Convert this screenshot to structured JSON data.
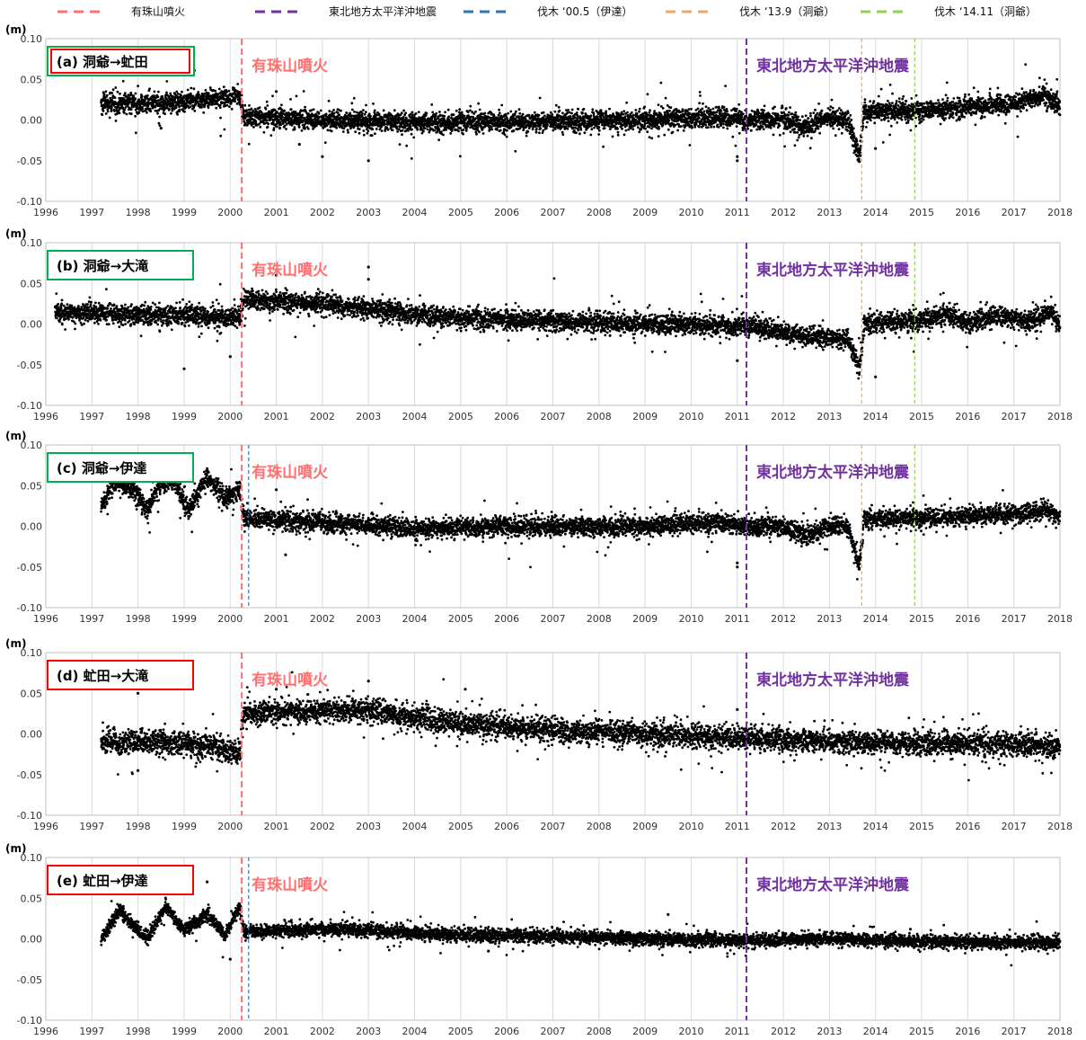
{
  "legend": [
    {
      "label": "有珠山噴火",
      "color": "#ff7070"
    },
    {
      "label": "東北地方太平洋沖地震",
      "color": "#7030a0"
    },
    {
      "label": "伐木 ‘00.5（伊達）",
      "color": "#2e75b6"
    },
    {
      "label": "伐木 ‘13.9（洞爺）",
      "color": "#f4a460"
    },
    {
      "label": "伐木 ‘14.11（洞爺）",
      "color": "#92d050"
    }
  ],
  "chart_data": [
    {
      "type": "scatter",
      "title": "(a) 洞爺→虻田",
      "title_box_color": "#00b050",
      "title_box_color_inner": "#ff0000",
      "y_unit": "(m)",
      "xlim": [
        1996,
        2018
      ],
      "ylim": [
        -0.1,
        0.1
      ],
      "x_ticks": [
        "1996",
        "1997",
        "1998",
        "1999",
        "2000",
        "2001",
        "2002",
        "2003",
        "2004",
        "2005",
        "2006",
        "2007",
        "2008",
        "2009",
        "2010",
        "2011",
        "2012",
        "2013",
        "2014",
        "2015",
        "2016",
        "2017",
        "2018"
      ],
      "y_ticks": [
        "0.10",
        "0.05",
        "0.00",
        "-0.05",
        "-0.10"
      ],
      "annotations": [
        {
          "text": "有珠山噴火",
          "x": 2000.25,
          "color": "#ff7070"
        },
        {
          "text": "東北地方太平洋沖地震",
          "x": 2011.2,
          "color": "#7030a0"
        }
      ],
      "events": [
        {
          "x": 2000.25,
          "color": "#ff7070",
          "style": "heavy"
        },
        {
          "x": 2011.2,
          "color": "#7030a0",
          "style": "heavy"
        },
        {
          "x": 2013.7,
          "color": "#f4a460",
          "style": "light"
        },
        {
          "x": 2014.85,
          "color": "#92d050",
          "style": "light"
        }
      ],
      "series_profile": [
        [
          1997.2,
          0.02
        ],
        [
          1998.0,
          0.02
        ],
        [
          1999.0,
          0.022
        ],
        [
          2000.2,
          0.03
        ],
        [
          2000.3,
          0.005
        ],
        [
          2002.0,
          0.0
        ],
        [
          2004.0,
          -0.003
        ],
        [
          2007.0,
          -0.002
        ],
        [
          2009.0,
          0.0
        ],
        [
          2010.5,
          0.004
        ],
        [
          2011.2,
          0.0
        ],
        [
          2012.0,
          0.002
        ],
        [
          2012.5,
          -0.01
        ],
        [
          2013.0,
          0.002
        ],
        [
          2013.4,
          0.0
        ],
        [
          2013.65,
          -0.045
        ],
        [
          2013.75,
          0.01
        ],
        [
          2015.0,
          0.012
        ],
        [
          2016.0,
          0.015
        ],
        [
          2017.0,
          0.02
        ],
        [
          2017.7,
          0.03
        ],
        [
          2018.0,
          0.015
        ]
      ],
      "noise": 0.006,
      "outliers": [
        [
          2001.5,
          -0.03
        ],
        [
          2002.0,
          -0.045
        ],
        [
          2003.0,
          -0.05
        ],
        [
          2001.0,
          0.035
        ],
        [
          2011.0,
          -0.045
        ],
        [
          2011.0,
          -0.05
        ],
        [
          2014.0,
          -0.035
        ],
        [
          1998.5,
          -0.01
        ]
      ]
    },
    {
      "type": "scatter",
      "title": "(b) 洞爺→大滝",
      "title_box_color": "#00b050",
      "y_unit": "(m)",
      "xlim": [
        1996,
        2018
      ],
      "ylim": [
        -0.1,
        0.1
      ],
      "x_ticks": [
        "1996",
        "1997",
        "1998",
        "1999",
        "2000",
        "2001",
        "2002",
        "2003",
        "2004",
        "2005",
        "2006",
        "2007",
        "2008",
        "2009",
        "2010",
        "2011",
        "2012",
        "2013",
        "2014",
        "2015",
        "2016",
        "2017",
        "2018"
      ],
      "y_ticks": [
        "0.10",
        "0.05",
        "0.00",
        "-0.05",
        "-0.10"
      ],
      "annotations": [
        {
          "text": "有珠山噴火",
          "x": 2000.25,
          "color": "#ff7070"
        },
        {
          "text": "東北地方太平洋沖地震",
          "x": 2011.2,
          "color": "#7030a0"
        }
      ],
      "events": [
        {
          "x": 2000.25,
          "color": "#ff7070",
          "style": "heavy"
        },
        {
          "x": 2011.2,
          "color": "#7030a0",
          "style": "heavy"
        },
        {
          "x": 2013.7,
          "color": "#f4a460",
          "style": "light"
        },
        {
          "x": 2014.85,
          "color": "#92d050",
          "style": "light"
        }
      ],
      "series_profile": [
        [
          1996.2,
          0.015
        ],
        [
          1998.0,
          0.012
        ],
        [
          2000.2,
          0.008
        ],
        [
          2000.3,
          0.03
        ],
        [
          2002.0,
          0.025
        ],
        [
          2003.5,
          0.015
        ],
        [
          2005.0,
          0.007
        ],
        [
          2007.0,
          0.003
        ],
        [
          2009.0,
          0.0
        ],
        [
          2011.2,
          -0.003
        ],
        [
          2012.5,
          -0.015
        ],
        [
          2013.4,
          -0.02
        ],
        [
          2013.65,
          -0.055
        ],
        [
          2013.75,
          0.0
        ],
        [
          2015.0,
          0.005
        ],
        [
          2015.5,
          0.012
        ],
        [
          2016.0,
          0.002
        ],
        [
          2016.8,
          0.012
        ],
        [
          2017.3,
          0.002
        ],
        [
          2017.8,
          0.015
        ],
        [
          2018.0,
          0.0
        ]
      ],
      "noise": 0.006,
      "outliers": [
        [
          1998.1,
          0.06
        ],
        [
          1999.0,
          -0.055
        ],
        [
          2000.0,
          -0.04
        ],
        [
          2001.0,
          0.06
        ],
        [
          2003.0,
          0.07
        ],
        [
          2003.0,
          0.055
        ],
        [
          2011.0,
          -0.045
        ],
        [
          2014.0,
          -0.065
        ]
      ]
    },
    {
      "type": "scatter",
      "title": "(c) 洞爺→伊達",
      "title_box_color": "#00b050",
      "y_unit": "(m)",
      "xlim": [
        1996,
        2018
      ],
      "ylim": [
        -0.1,
        0.1
      ],
      "x_ticks": [
        "1996",
        "1997",
        "1998",
        "1999",
        "2000",
        "2001",
        "2002",
        "2003",
        "2004",
        "2005",
        "2006",
        "2007",
        "2008",
        "2009",
        "2010",
        "2011",
        "2012",
        "2013",
        "2014",
        "2015",
        "2016",
        "2017",
        "2018"
      ],
      "y_ticks": [
        "0.10",
        "0.05",
        "0.00",
        "-0.05",
        "-0.10"
      ],
      "annotations": [
        {
          "text": "有珠山噴火",
          "x": 2000.25,
          "color": "#ff7070"
        },
        {
          "text": "東北地方太平洋沖地震",
          "x": 2011.2,
          "color": "#7030a0"
        }
      ],
      "events": [
        {
          "x": 2000.25,
          "color": "#ff7070",
          "style": "heavy"
        },
        {
          "x": 2000.4,
          "color": "#2e75b6",
          "style": "light"
        },
        {
          "x": 2011.2,
          "color": "#7030a0",
          "style": "heavy"
        },
        {
          "x": 2013.7,
          "color": "#f4a460",
          "style": "light"
        },
        {
          "x": 2014.85,
          "color": "#92d050",
          "style": "light"
        }
      ],
      "series_profile": [
        [
          1997.2,
          0.025
        ],
        [
          1997.5,
          0.055
        ],
        [
          1997.9,
          0.045
        ],
        [
          1998.2,
          0.02
        ],
        [
          1998.5,
          0.055
        ],
        [
          1998.8,
          0.055
        ],
        [
          1999.1,
          0.02
        ],
        [
          1999.5,
          0.06
        ],
        [
          1999.9,
          0.035
        ],
        [
          2000.2,
          0.045
        ],
        [
          2000.3,
          0.01
        ],
        [
          2002.0,
          0.005
        ],
        [
          2004.0,
          -0.003
        ],
        [
          2007.0,
          0.0
        ],
        [
          2009.0,
          0.0
        ],
        [
          2010.5,
          0.005
        ],
        [
          2011.2,
          0.0
        ],
        [
          2012.0,
          0.0
        ],
        [
          2012.5,
          -0.012
        ],
        [
          2013.0,
          0.0
        ],
        [
          2013.4,
          0.0
        ],
        [
          2013.65,
          -0.05
        ],
        [
          2013.75,
          0.008
        ],
        [
          2015.0,
          0.01
        ],
        [
          2016.0,
          0.012
        ],
        [
          2017.0,
          0.015
        ],
        [
          2017.7,
          0.02
        ],
        [
          2018.0,
          0.01
        ]
      ],
      "noise": 0.006,
      "outliers": [
        [
          2001.0,
          0.045
        ],
        [
          2001.2,
          -0.035
        ],
        [
          2011.0,
          -0.045
        ],
        [
          2011.0,
          -0.05
        ]
      ]
    },
    {
      "type": "scatter",
      "title": "(d) 虻田→大滝",
      "title_box_color": "#ff0000",
      "y_unit": "(m)",
      "xlim": [
        1996,
        2018
      ],
      "ylim": [
        -0.1,
        0.1
      ],
      "x_ticks": [
        "1996",
        "1997",
        "1998",
        "1999",
        "2000",
        "2001",
        "2002",
        "2003",
        "2004",
        "2005",
        "2006",
        "2007",
        "2008",
        "2009",
        "2010",
        "2011",
        "2012",
        "2013",
        "2014",
        "2015",
        "2016",
        "2017",
        "2018"
      ],
      "y_ticks": [
        "0.10",
        "0.05",
        "0.00",
        "-0.05",
        "-0.10"
      ],
      "annotations": [
        {
          "text": "有珠山噴火",
          "x": 2000.25,
          "color": "#ff7070"
        },
        {
          "text": "東北地方太平洋沖地震",
          "x": 2011.2,
          "color": "#7030a0"
        }
      ],
      "events": [
        {
          "x": 2000.25,
          "color": "#ff7070",
          "style": "heavy"
        },
        {
          "x": 2011.2,
          "color": "#7030a0",
          "style": "heavy"
        }
      ],
      "series_profile": [
        [
          1997.2,
          -0.01
        ],
        [
          1998.5,
          -0.01
        ],
        [
          1999.5,
          -0.015
        ],
        [
          2000.2,
          -0.025
        ],
        [
          2000.3,
          0.025
        ],
        [
          2002.0,
          0.028
        ],
        [
          2003.0,
          0.03
        ],
        [
          2004.0,
          0.02
        ],
        [
          2005.0,
          0.012
        ],
        [
          2007.0,
          0.005
        ],
        [
          2009.0,
          0.0
        ],
        [
          2011.2,
          -0.005
        ],
        [
          2013.0,
          -0.01
        ],
        [
          2015.0,
          -0.012
        ],
        [
          2016.5,
          -0.012
        ],
        [
          2018.0,
          -0.015
        ]
      ],
      "noise": 0.007,
      "outliers": [
        [
          1998.0,
          0.05
        ],
        [
          1998.0,
          -0.045
        ],
        [
          2003.0,
          0.065
        ],
        [
          2005.1,
          0.055
        ],
        [
          2001.0,
          0.055
        ],
        [
          2011.0,
          0.03
        ]
      ]
    },
    {
      "type": "scatter",
      "title": "(e) 虻田→伊達",
      "title_box_color": "#ff0000",
      "y_unit": "(m)",
      "xlim": [
        1996,
        2018
      ],
      "ylim": [
        -0.1,
        0.1
      ],
      "x_ticks": [
        "1996",
        "1997",
        "1998",
        "1999",
        "2000",
        "2001",
        "2002",
        "2003",
        "2004",
        "2005",
        "2006",
        "2007",
        "2008",
        "2009",
        "2010",
        "2011",
        "2012",
        "2013",
        "2014",
        "2015",
        "2016",
        "2017",
        "2018"
      ],
      "y_ticks": [
        "0.10",
        "0.05",
        "0.00",
        "-0.05",
        "-0.10"
      ],
      "annotations": [
        {
          "text": "有珠山噴火",
          "x": 2000.25,
          "color": "#ff7070"
        },
        {
          "text": "東北地方太平洋沖地震",
          "x": 2011.2,
          "color": "#7030a0"
        }
      ],
      "events": [
        {
          "x": 2000.25,
          "color": "#ff7070",
          "style": "heavy"
        },
        {
          "x": 2000.4,
          "color": "#2e75b6",
          "style": "light"
        },
        {
          "x": 2011.2,
          "color": "#7030a0",
          "style": "heavy"
        }
      ],
      "series_profile": [
        [
          1997.2,
          0.0
        ],
        [
          1997.6,
          0.035
        ],
        [
          1998.0,
          0.01
        ],
        [
          1998.2,
          0.0
        ],
        [
          1998.6,
          0.04
        ],
        [
          1999.0,
          0.01
        ],
        [
          1999.5,
          0.03
        ],
        [
          1999.9,
          0.005
        ],
        [
          2000.2,
          0.04
        ],
        [
          2000.3,
          0.008
        ],
        [
          2002.0,
          0.012
        ],
        [
          2003.0,
          0.01
        ],
        [
          2004.0,
          0.007
        ],
        [
          2005.0,
          0.005
        ],
        [
          2007.0,
          0.003
        ],
        [
          2009.0,
          0.0
        ],
        [
          2011.2,
          -0.002
        ],
        [
          2013.0,
          0.0
        ],
        [
          2015.0,
          -0.003
        ],
        [
          2018.0,
          -0.005
        ]
      ],
      "noise": 0.004,
      "outliers": [
        [
          1999.5,
          0.07
        ],
        [
          2000.0,
          -0.025
        ],
        [
          2009.5,
          0.03
        ],
        [
          2005.6,
          -0.015
        ]
      ]
    }
  ]
}
